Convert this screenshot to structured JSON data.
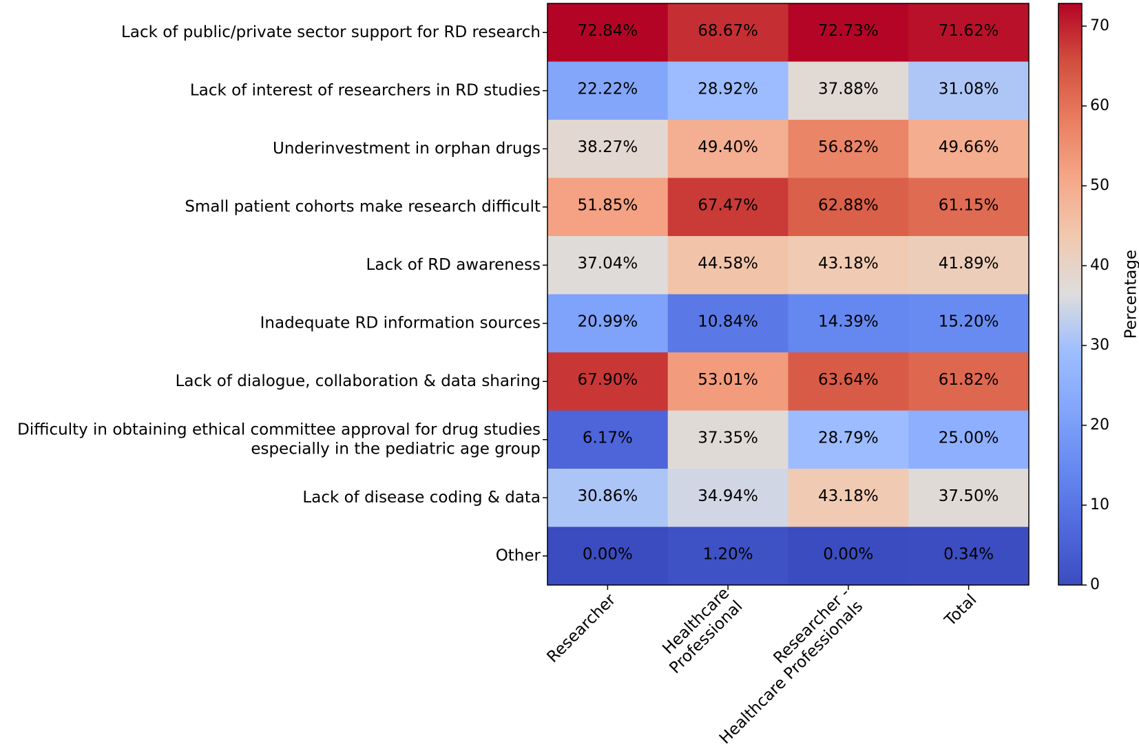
{
  "chart_data": {
    "type": "heatmap",
    "title": "",
    "rows": [
      [
        "Lack of public/private sector support for RD research"
      ],
      [
        "Lack of interest of researchers in RD studies"
      ],
      [
        "Underinvestment in orphan drugs"
      ],
      [
        "Small patient cohorts make research difficult"
      ],
      [
        "Lack of RD awareness"
      ],
      [
        "Inadequate RD information sources"
      ],
      [
        "Lack of dialogue, collaboration & data sharing"
      ],
      [
        "Difficulty in obtaining ethical committee approval for drug studies",
        "especially in the pediatric age group"
      ],
      [
        "Lack of disease coding & data"
      ],
      [
        "Other"
      ]
    ],
    "columns": [
      [
        "Researcher"
      ],
      [
        "Healthcare",
        "Professional"
      ],
      [
        "Researcher -",
        "Healthcare Professionals"
      ],
      [
        "Total"
      ]
    ],
    "values": [
      [
        72.84,
        68.67,
        72.73,
        71.62
      ],
      [
        22.22,
        28.92,
        37.88,
        31.08
      ],
      [
        38.27,
        49.4,
        56.82,
        49.66
      ],
      [
        51.85,
        67.47,
        62.88,
        61.15
      ],
      [
        37.04,
        44.58,
        43.18,
        41.89
      ],
      [
        20.99,
        10.84,
        14.39,
        15.2
      ],
      [
        67.9,
        53.01,
        63.64,
        61.82
      ],
      [
        6.17,
        37.35,
        28.79,
        25.0
      ],
      [
        30.86,
        34.94,
        43.18,
        37.5
      ],
      [
        0.0,
        1.2,
        0.0,
        0.34
      ]
    ],
    "cell_labels": [
      [
        "72.84%",
        "68.67%",
        "72.73%",
        "71.62%"
      ],
      [
        "22.22%",
        "28.92%",
        "37.88%",
        "31.08%"
      ],
      [
        "38.27%",
        "49.40%",
        "56.82%",
        "49.66%"
      ],
      [
        "51.85%",
        "67.47%",
        "62.88%",
        "61.15%"
      ],
      [
        "37.04%",
        "44.58%",
        "43.18%",
        "41.89%"
      ],
      [
        "20.99%",
        "10.84%",
        "14.39%",
        "15.20%"
      ],
      [
        "67.90%",
        "53.01%",
        "63.64%",
        "61.82%"
      ],
      [
        "6.17%",
        "37.35%",
        "28.79%",
        "25.00%"
      ],
      [
        "30.86%",
        "34.94%",
        "43.18%",
        "37.50%"
      ],
      [
        "0.00%",
        "1.20%",
        "0.00%",
        "0.34%"
      ]
    ],
    "colormap": "coolwarm",
    "colorbar": {
      "label": "Percentage",
      "range": [
        0,
        72.84
      ],
      "ticks": [
        0,
        10,
        20,
        30,
        40,
        50,
        60,
        70
      ]
    }
  }
}
